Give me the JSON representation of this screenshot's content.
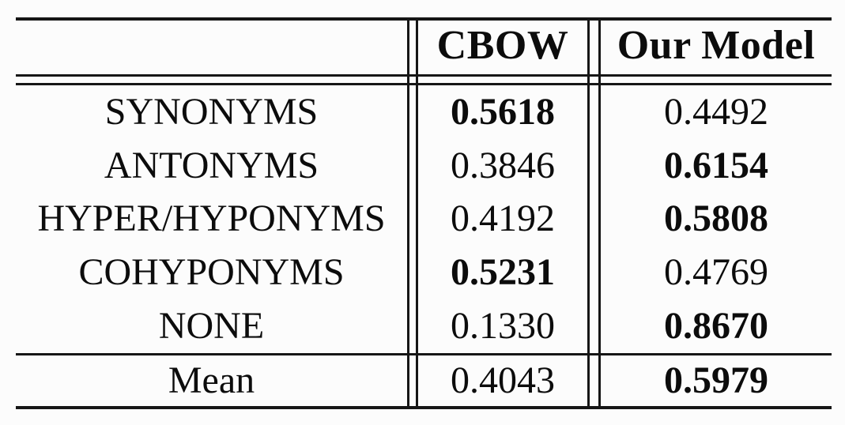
{
  "colors": {
    "background": "#fcfcfc",
    "text": "#0c0c0c",
    "rule": "#161616"
  },
  "table": {
    "header": {
      "corner": "",
      "cbow": "CBOW",
      "our_model": "Our Model"
    },
    "rows": [
      {
        "label": "SYNONYMS",
        "cbow": "0.5618",
        "our_model": "0.4492",
        "bold_column": "cbow"
      },
      {
        "label": "ANTONYMS",
        "cbow": "0.3846",
        "our_model": "0.6154",
        "bold_column": "our_model"
      },
      {
        "label": "HYPER/HYPONYMS",
        "cbow": "0.4192",
        "our_model": "0.5808",
        "bold_column": "our_model"
      },
      {
        "label": "COHYPONYMS",
        "cbow": "0.5231",
        "our_model": "0.4769",
        "bold_column": "cbow"
      },
      {
        "label": "NONE",
        "cbow": "0.1330",
        "our_model": "0.8670",
        "bold_column": "our_model"
      }
    ],
    "summary_row": {
      "label": "Mean",
      "cbow": "0.4043",
      "our_model": "0.5979",
      "bold_column": "our_model"
    }
  }
}
